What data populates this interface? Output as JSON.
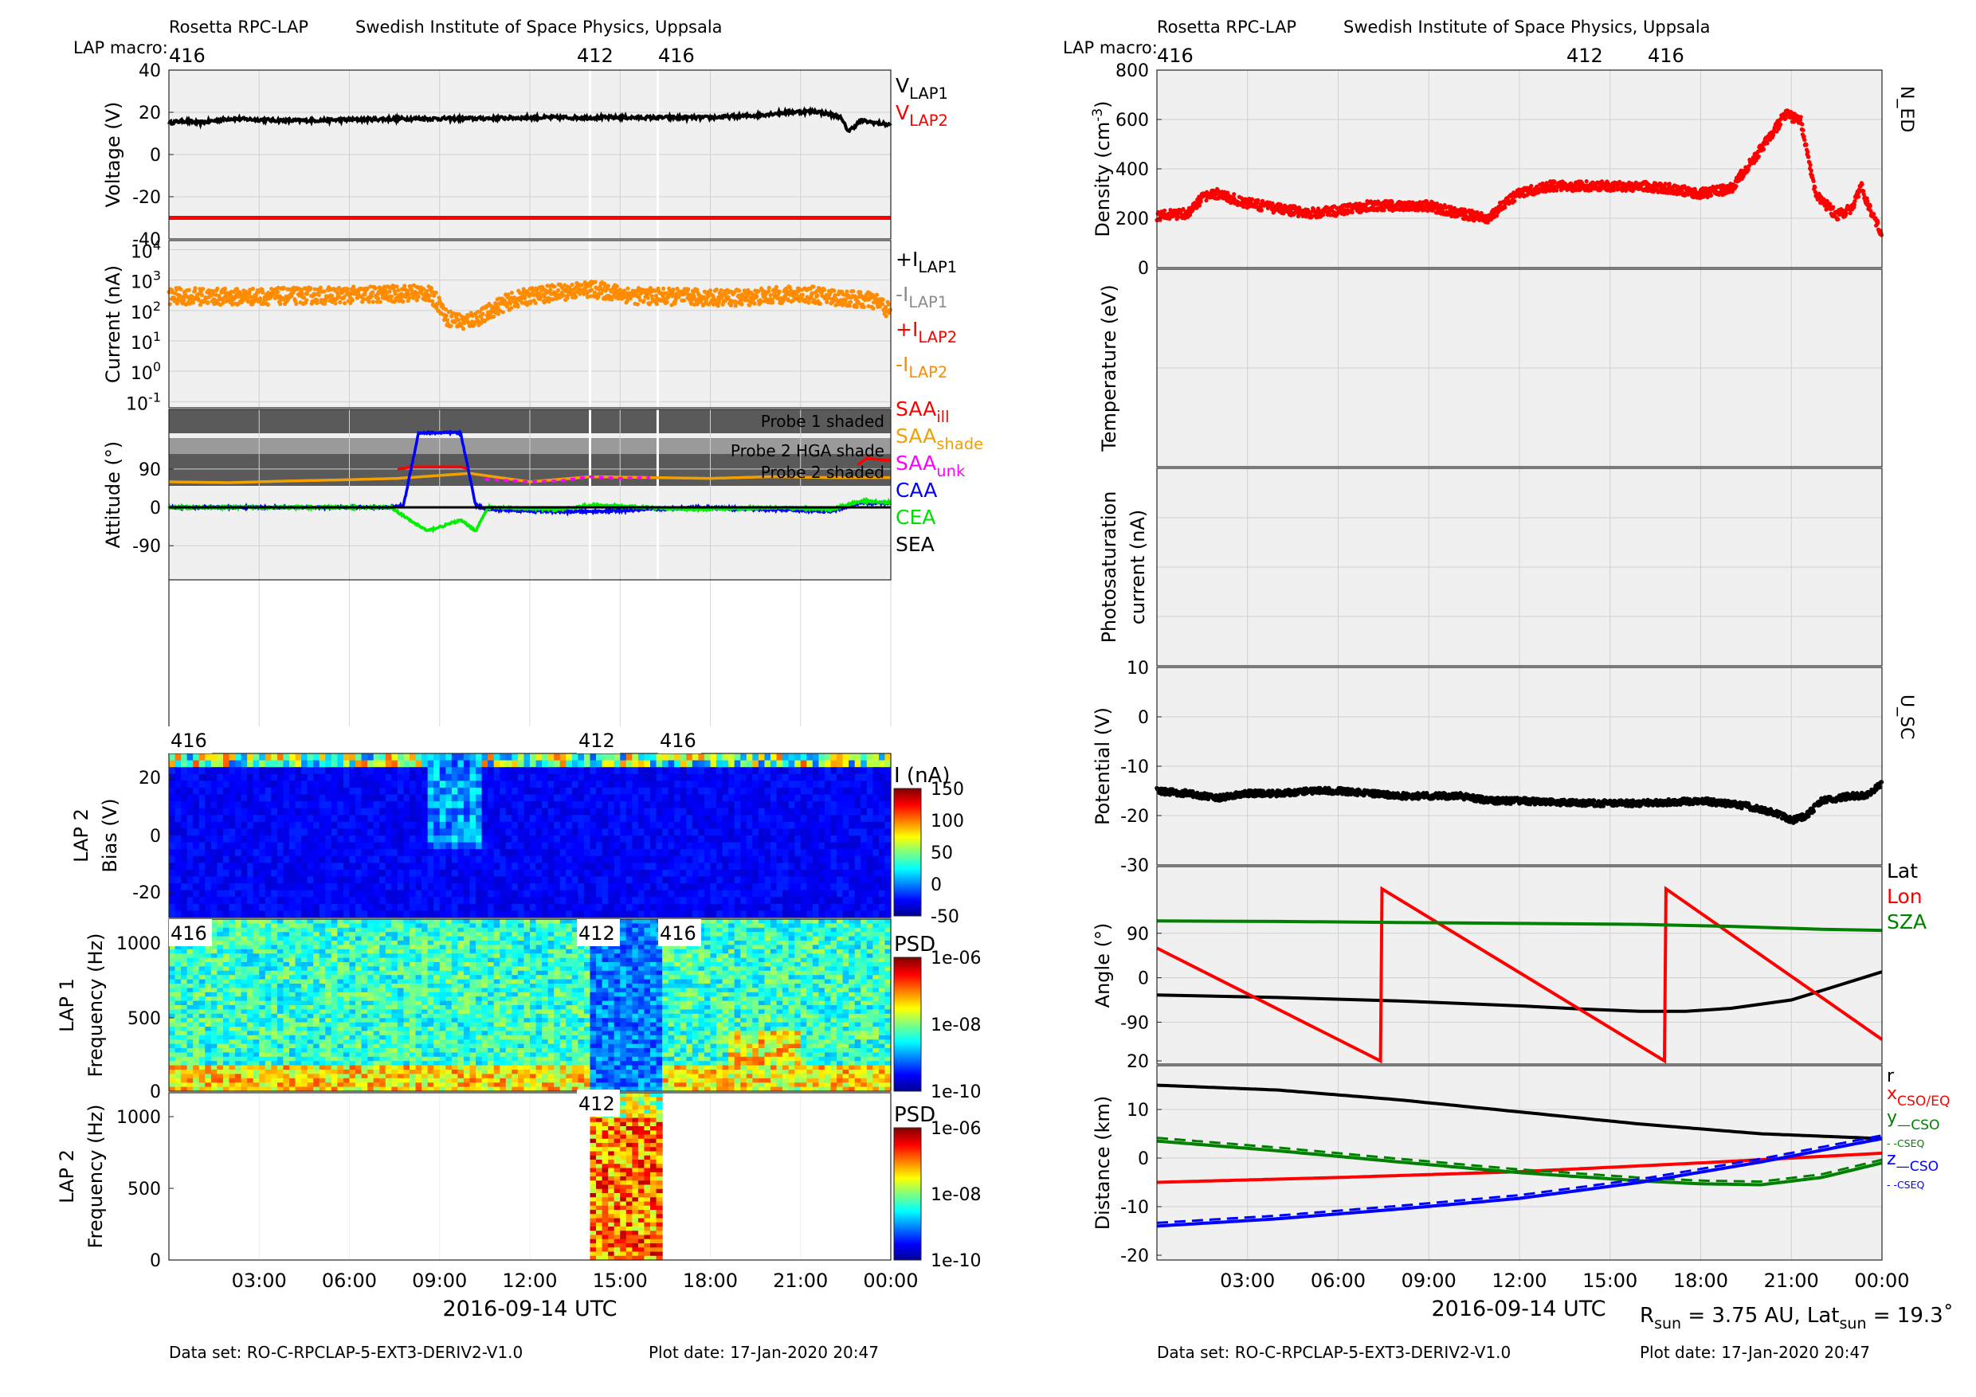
{
  "header": {
    "instrument": "Rosetta RPC-LAP",
    "institute": "Swedish Institute of Space Physics, Uppsala",
    "macro_label": "LAP macro:",
    "macros": [
      "416",
      "412",
      "416"
    ]
  },
  "footer": {
    "dataset": "Data set: RO-C-RPCLAP-5-EXT3-DERIV2-V1.0",
    "plot_date": "Plot date: 17-Jan-2020 20:47"
  },
  "time_axis": {
    "label": "2016-09-14 UTC",
    "ticks": [
      "03:00",
      "06:00",
      "09:00",
      "12:00",
      "15:00",
      "18:00",
      "21:00",
      "00:00"
    ],
    "range_h": [
      0,
      24
    ]
  },
  "left_panels": {
    "voltage": {
      "ylabel": "Voltage (V)",
      "yticks": [
        "40",
        "20",
        "0",
        "-20",
        "-40"
      ],
      "legend": [
        {
          "main": "V",
          "sub": "LAP1",
          "color": "#000000"
        },
        {
          "main": "V",
          "sub": "LAP2",
          "color": "#ff0000"
        }
      ]
    },
    "current": {
      "ylabel": "Current (nA)",
      "yticks": [
        "10",
        "10",
        "10",
        "10",
        "10",
        "10"
      ],
      "yexps": [
        "4",
        "3",
        "2",
        "1",
        "0",
        "-1"
      ],
      "legend": [
        {
          "main": "+I",
          "sub": "LAP1",
          "color": "#000000"
        },
        {
          "main": "-I",
          "sub": "LAP1",
          "color": "#8c8c8c"
        },
        {
          "main": "+I",
          "sub": "LAP2",
          "color": "#ff0000"
        },
        {
          "main": "-I",
          "sub": "LAP2",
          "color": "#ff8c00"
        }
      ]
    },
    "attitude": {
      "ylabel": "Attitude (°)",
      "yticks": [
        "90",
        "0",
        "-90"
      ],
      "band_labels": [
        "Probe 1 shaded",
        "Probe 2 HGA shade",
        "Probe 2 shaded"
      ],
      "legend": [
        {
          "main": "SAA",
          "sub": "ill",
          "color": "#ff0000"
        },
        {
          "main": "SAA",
          "sub": "shade",
          "color": "#f0a000"
        },
        {
          "main": "SAA",
          "sub": "unk",
          "color": "#ff00ff"
        },
        {
          "main": "CAA",
          "sub": "",
          "color": "#0000ff"
        },
        {
          "main": "CEA",
          "sub": "",
          "color": "#00dd00"
        },
        {
          "main": "SEA",
          "sub": "",
          "color": "#000000"
        }
      ]
    },
    "sweep": {
      "ylabel1": "LAP 2",
      "ylabel2": "Bias (V)",
      "yticks": [
        "20",
        "0",
        "-20"
      ],
      "cbar_title": "I (nA)",
      "cbar_ticks": [
        "150",
        "100",
        "50",
        "0",
        "-50"
      ]
    },
    "psd1": {
      "ylabel1": "LAP 1",
      "ylabel2": "Frequency (Hz)",
      "yticks": [
        "1000",
        "500",
        "0"
      ],
      "cbar_title": "PSD",
      "cbar_ticks": [
        "1e-06",
        "1e-08",
        "1e-10"
      ]
    },
    "psd2": {
      "ylabel1": "LAP 2",
      "ylabel2": "Frequency (Hz)",
      "yticks": [
        "1000",
        "500",
        "0"
      ],
      "cbar_title": "PSD",
      "cbar_ticks": [
        "1e-06",
        "1e-08",
        "1e-10"
      ]
    }
  },
  "right_panels": {
    "density": {
      "ylabel": "Density (cm-3)",
      "yticks": [
        "800",
        "600",
        "400",
        "200",
        "0"
      ],
      "tag": "N_ED"
    },
    "temperature": {
      "ylabel": "Temperature (eV)"
    },
    "photosat": {
      "ylabel1": "Photosaturation",
      "ylabel2": "current (nA)"
    },
    "potential": {
      "ylabel": "Potential (V)",
      "yticks": [
        "10",
        "0",
        "-10",
        "-20",
        "-30"
      ],
      "tag": "U_SC"
    },
    "angle": {
      "ylabel": "Angle (°)",
      "yticks": [
        "90",
        "0",
        "-90"
      ],
      "legend": [
        {
          "main": "Lat",
          "color": "#000000"
        },
        {
          "main": "Lon",
          "color": "#ff0000"
        },
        {
          "main": "SZA",
          "color": "#008000"
        }
      ]
    },
    "distance": {
      "ylabel": "Distance (km)",
      "yticks": [
        "20",
        "10",
        "0",
        "-10",
        "-20"
      ],
      "legend": [
        {
          "main": "r",
          "sub": "",
          "color": "#000000"
        },
        {
          "main": "x",
          "sub": "CSO/EQ",
          "color": "#ff0000"
        },
        {
          "main": "y",
          "sub": "—CSO",
          "color": "#008000"
        },
        {
          "main": "",
          "sub": "- -CSEQ",
          "color": "#008000"
        },
        {
          "main": "z",
          "sub": "—CSO",
          "color": "#0000ff"
        },
        {
          "main": "",
          "sub": "- -CSEQ",
          "color": "#0000ff"
        }
      ],
      "rsun_label": "R",
      "rsun_sub": "sun",
      "rsun_value": " = 3.75 AU, Lat",
      "lat_sub": "sun",
      "lat_value": " = 19.3˚"
    }
  },
  "chart_data": [
    {
      "type": "line",
      "title": "Voltage",
      "ylabel": "Voltage (V)",
      "ylim": [
        -40,
        40
      ],
      "series": [
        {
          "name": "VLAP1",
          "x": [
            0,
            0.5,
            1,
            2,
            4,
            6,
            8,
            10,
            12,
            14,
            16,
            18,
            19.5,
            20.5,
            21.5,
            22.3,
            22.6,
            23,
            24
          ],
          "y": [
            15,
            16,
            15,
            17,
            16,
            16.5,
            17,
            17,
            17.5,
            17.5,
            17.5,
            17.5,
            18.5,
            20,
            20.5,
            18,
            11,
            16,
            14
          ]
        },
        {
          "name": "VLAP2",
          "x": [
            0,
            24
          ],
          "y": [
            -30,
            -30
          ]
        }
      ]
    },
    {
      "type": "scatter",
      "title": "Current",
      "ylabel": "Current (nA)",
      "yscale": "log",
      "ylim": [
        0.1,
        20000
      ],
      "series": [
        {
          "name": "-ILAP2",
          "x": [
            0,
            2,
            4,
            6,
            7.5,
            8.5,
            9.2,
            9.8,
            10.5,
            12,
            14,
            15.5,
            17,
            19,
            21,
            22.5,
            23.5,
            24
          ],
          "y": [
            300,
            280,
            300,
            320,
            350,
            400,
            60,
            40,
            70,
            300,
            500,
            300,
            280,
            260,
            350,
            250,
            200,
            80
          ]
        }
      ]
    },
    {
      "type": "line",
      "title": "Attitude",
      "ylabel": "Attitude (°)",
      "series": [
        {
          "name": "SAAill",
          "x": [
            7.6,
            8.1,
            9.7,
            10.0
          ],
          "y": [
            90,
            95,
            95,
            90
          ]
        },
        {
          "name": "SAAshade",
          "x": [
            0,
            2,
            4,
            6,
            7.6,
            10.0,
            11,
            12,
            14,
            16,
            18,
            20,
            22,
            24
          ],
          "y": [
            60,
            58,
            62,
            65,
            68,
            80,
            70,
            60,
            72,
            70,
            68,
            72,
            70,
            70
          ]
        },
        {
          "name": "SAAunk",
          "x": [
            10.5,
            12,
            13,
            14,
            15,
            16
          ],
          "y": [
            66,
            60,
            62,
            72,
            68,
            70
          ]
        },
        {
          "name": "SAAill",
          "x": [
            22.9,
            23.2,
            24
          ],
          "y": [
            100,
            115,
            110
          ]
        },
        {
          "name": "CAA",
          "x": [
            0,
            7.4,
            7.8,
            8.3,
            9.7,
            10.2,
            10.6,
            13,
            14,
            16,
            17.5,
            20,
            22,
            23,
            24
          ],
          "y": [
            0,
            0,
            5,
            175,
            175,
            5,
            -5,
            -10,
            -10,
            -5,
            0,
            -5,
            -10,
            10,
            10
          ]
        },
        {
          "name": "CEA",
          "x": [
            0,
            7.4,
            8.0,
            8.6,
            9.7,
            10.2,
            10.6,
            13,
            14,
            16,
            17.5,
            20,
            22,
            23,
            24
          ],
          "y": [
            0,
            0,
            -30,
            -55,
            -30,
            -55,
            0,
            -5,
            5,
            0,
            -5,
            0,
            -5,
            15,
            12
          ]
        },
        {
          "name": "SEA",
          "x": [
            0,
            24
          ],
          "y": [
            0,
            0
          ]
        }
      ]
    },
    {
      "type": "scatter",
      "title": "Density",
      "ylabel": "Density (cm-3)",
      "ylim": [
        0,
        800
      ],
      "series": [
        {
          "name": "N_ED",
          "x": [
            0,
            1,
            1.5,
            2,
            3,
            4,
            5,
            6,
            7,
            8,
            9,
            10,
            11,
            11.5,
            12,
            13,
            14,
            15,
            16,
            17,
            18,
            19,
            20,
            20.8,
            21.3,
            21.8,
            22.5,
            23,
            23.3,
            23.6,
            24
          ],
          "y": [
            210,
            220,
            280,
            300,
            260,
            240,
            220,
            230,
            250,
            250,
            250,
            220,
            200,
            260,
            300,
            330,
            330,
            330,
            330,
            320,
            300,
            320,
            480,
            620,
            600,
            300,
            210,
            240,
            330,
            240,
            140
          ]
        }
      ]
    },
    {
      "type": "scatter",
      "title": "Potential",
      "ylabel": "Potential (V)",
      "ylim": [
        -30,
        10
      ],
      "series": [
        {
          "name": "U_SC",
          "x": [
            0,
            1,
            2,
            3,
            4,
            5,
            6,
            8,
            10,
            11,
            12,
            14,
            16,
            18,
            19.5,
            20.5,
            21,
            21.5,
            22,
            23,
            23.5,
            24
          ],
          "y": [
            -15,
            -15.5,
            -16.5,
            -15.5,
            -15.5,
            -15,
            -15,
            -16,
            -16,
            -17,
            -17,
            -17.5,
            -17.5,
            -17,
            -18,
            -19.5,
            -21,
            -20,
            -17,
            -16,
            -16,
            -13.5
          ]
        }
      ]
    },
    {
      "type": "line",
      "title": "Angle",
      "ylabel": "Angle (°)",
      "series": [
        {
          "name": "Lat",
          "x": [
            0,
            4,
            8,
            12,
            14,
            16,
            17.5,
            19,
            21,
            24
          ],
          "y": [
            -35,
            -40,
            -47,
            -57,
            -63,
            -68,
            -68,
            -62,
            -45,
            12
          ]
        },
        {
          "name": "Lon",
          "x": [
            0,
            7.4,
            7.45,
            16.8,
            16.85,
            24
          ],
          "y": [
            60,
            -188,
            180,
            -188,
            180,
            -125
          ]
        },
        {
          "name": "SZA",
          "x": [
            0,
            4,
            8,
            12,
            16,
            19,
            22,
            24
          ],
          "y": [
            115,
            114,
            112,
            110,
            108,
            104,
            98,
            96
          ]
        }
      ]
    },
    {
      "type": "line",
      "title": "Distance",
      "ylabel": "Distance (km)",
      "ylim": [
        -20,
        20
      ],
      "series": [
        {
          "name": "r",
          "x": [
            0,
            4,
            8,
            12,
            16,
            20,
            24
          ],
          "y": [
            15,
            14,
            12,
            9.5,
            7,
            5,
            4
          ]
        },
        {
          "name": "x CSO/EQ",
          "x": [
            0,
            6,
            12,
            18,
            24
          ],
          "y": [
            -5,
            -4,
            -2.8,
            -1,
            1
          ]
        },
        {
          "name": "y CSO",
          "x": [
            0,
            4,
            8,
            12,
            16,
            18,
            20,
            22,
            24
          ],
          "y": [
            3.5,
            1.5,
            -0.8,
            -3,
            -4.7,
            -5.3,
            -5.5,
            -4,
            -1
          ]
        },
        {
          "name": "z CSO",
          "x": [
            0,
            4,
            8,
            12,
            16,
            20,
            24
          ],
          "y": [
            -14,
            -12.5,
            -10.5,
            -8.3,
            -5,
            -0.8,
            4
          ]
        }
      ]
    }
  ]
}
